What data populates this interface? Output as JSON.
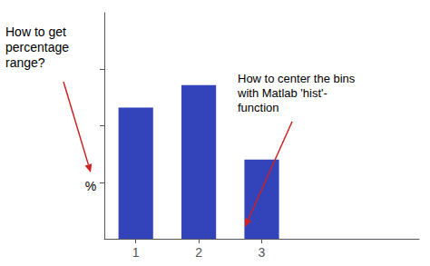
{
  "chart_data": {
    "type": "bar",
    "x": [
      1,
      2,
      3
    ],
    "values": [
      0.58,
      0.68,
      0.35
    ],
    "color": "#3344BB",
    "xlim": [
      0.5,
      5.5
    ],
    "xticks": [
      1,
      2,
      3
    ],
    "ylim": [
      0,
      1.0
    ],
    "yticks": [
      0.25,
      0.5,
      0.75
    ],
    "tick_labels": "x",
    "grid": false,
    "annotations": [
      "How to get\npercentage\nrange?",
      "%",
      "How to center the bins\nwith Matlab 'hist'-\nfunction"
    ]
  }
}
